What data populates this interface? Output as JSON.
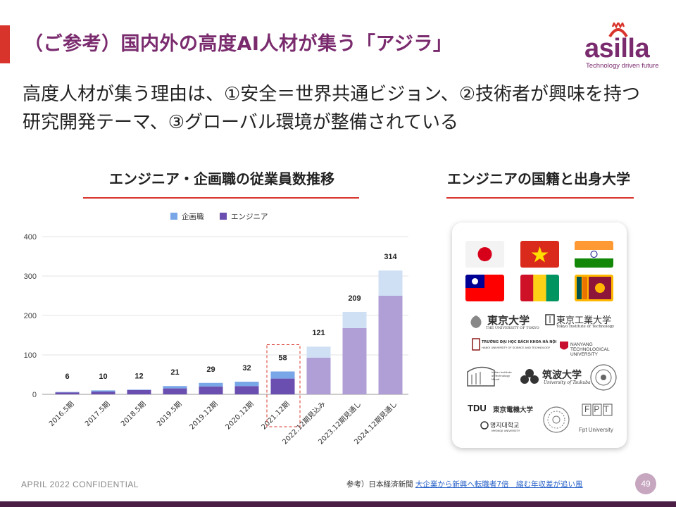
{
  "title": "（ご参考）国内外の高度AI人材が集う「アジラ」",
  "logo": {
    "word": "asilla",
    "tagline": "Technology driven future",
    "color": "#7a2b6e"
  },
  "message": "高度人材が集う理由は、①安全＝世界共通ビジョン、②技術者が興味を持つ研究開発テーマ、③グローバル環境が整備されている",
  "left_section": {
    "title": "エンジニア・企画職の従業員数推移"
  },
  "right_section": {
    "title": "エンジニアの国籍と出身大学",
    "flags": [
      "japan-flag",
      "vietnam-flag",
      "india-flag",
      "taiwan-flag",
      "guinea-flag",
      "sri-lanka-flag"
    ],
    "universities": {
      "tokyo": "東京大学",
      "tokyo_sub": "THE UNIVERSITY OF TOKYO",
      "titech": "東京工業大学",
      "titech_sub": "Tokyo Institute of Technology",
      "hanoi": "TRƯỜNG ĐẠI HỌC BÁCH KHOA HÀ NỘI",
      "hanoi_sub": "HANOI UNIVERSITY OF SCIENCE AND TECHNOLOGY",
      "ntu": "NANYANG TECHNOLOGICAL UNIVERSITY",
      "iit": "Indian Institute of Technology Mandi",
      "tsukuba": "筑波大学",
      "tsukuba_sub": "University of Tsukuba",
      "tdu": "TDU",
      "tdu_name": "東京電機大学",
      "myongji": "명지대학교",
      "myongji_sub": "MYONGJI UNIVERSITY",
      "fpt": "FPT",
      "fpt_sub": "Fpt University"
    }
  },
  "chart_data": {
    "type": "bar",
    "stacked": true,
    "categories": [
      "2016.5期",
      "2017.5期",
      "2018.5期",
      "2019.5期",
      "2019.12期",
      "2020.12期",
      "2021.12期",
      "2022.12期見込み",
      "2023.12期見通し",
      "2024.12期見通し"
    ],
    "series": [
      {
        "name": "企画職",
        "values": [
          1,
          3,
          1,
          6,
          9,
          11,
          18,
          28,
          41,
          64
        ]
      },
      {
        "name": "エンジニア",
        "values": [
          5,
          7,
          11,
          15,
          20,
          21,
          40,
          93,
          168,
          250
        ]
      }
    ],
    "totals": [
      6,
      10,
      12,
      21,
      29,
      32,
      58,
      121,
      209,
      314
    ],
    "y_ticks": [
      0,
      100,
      200,
      300,
      400
    ],
    "ylim": [
      0,
      400
    ],
    "legend_position": "top",
    "highlight_category": "2021.12期",
    "colors": {
      "planner_actual": "#78a6e6",
      "engineer_actual": "#6a4fb0",
      "planner_forecast": "#cfe0f4",
      "engineer_forecast": "#b09fd6",
      "highlight": "#d9342b"
    }
  },
  "footer": {
    "left": "APRIL 2022 CONFIDENTIAL",
    "ref_prefix": "参考）日本経済新聞 ",
    "ref_link": "大企業から新興へ転職者7倍　縮む年収差が追い風",
    "page": "49"
  }
}
